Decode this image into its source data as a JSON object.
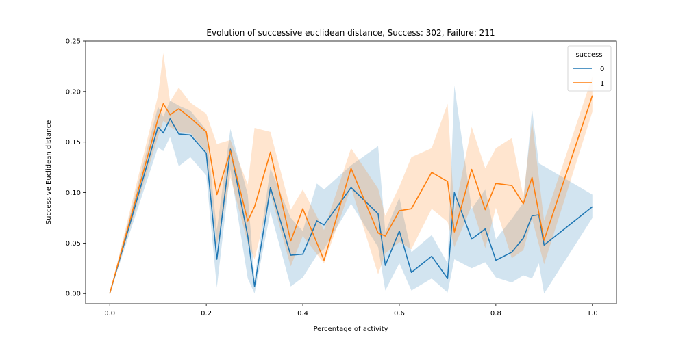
{
  "chart_data": {
    "type": "line",
    "title": "Evolution of successive euclidean distance, Success: 302, Failure: 211",
    "xlabel": "Percentage of activity",
    "ylabel": "Successive Euclidean distance",
    "xlim": [
      -0.05,
      1.05
    ],
    "ylim": [
      -0.01,
      0.25
    ],
    "xticks": [
      0.0,
      0.2,
      0.4,
      0.6,
      0.8,
      1.0
    ],
    "xtick_labels": [
      "0.0",
      "0.2",
      "0.4",
      "0.6",
      "0.8",
      "1.0"
    ],
    "yticks": [
      0.0,
      0.05,
      0.1,
      0.15,
      0.2,
      0.25
    ],
    "ytick_labels": [
      "0.00",
      "0.05",
      "0.10",
      "0.15",
      "0.20",
      "0.25"
    ],
    "grid": false,
    "legend": {
      "title": "success",
      "placement": "top-right"
    },
    "series": [
      {
        "name": "0",
        "color": "#1f77b4",
        "x": [
          0.0,
          0.1,
          0.111,
          0.125,
          0.143,
          0.167,
          0.2,
          0.222,
          0.25,
          0.286,
          0.3,
          0.333,
          0.375,
          0.4,
          0.429,
          0.444,
          0.5,
          0.556,
          0.571,
          0.6,
          0.625,
          0.667,
          0.7,
          0.714,
          0.75,
          0.778,
          0.8,
          0.833,
          0.857,
          0.875,
          0.889,
          0.9,
          1.0
        ],
        "y": [
          0.0,
          0.165,
          0.159,
          0.173,
          0.158,
          0.157,
          0.139,
          0.034,
          0.143,
          0.057,
          0.007,
          0.105,
          0.038,
          0.039,
          0.072,
          0.068,
          0.105,
          0.079,
          0.028,
          0.062,
          0.021,
          0.037,
          0.015,
          0.1,
          0.054,
          0.064,
          0.033,
          0.041,
          0.055,
          0.077,
          0.078,
          0.048,
          0.086
        ],
        "ci_low": [
          0.0,
          0.145,
          0.141,
          0.155,
          0.126,
          0.135,
          0.117,
          0.006,
          0.123,
          0.015,
          0.0,
          0.081,
          0.007,
          0.016,
          0.038,
          0.044,
          0.089,
          0.046,
          0.003,
          0.03,
          0.003,
          0.015,
          0.001,
          0.034,
          0.025,
          0.031,
          0.016,
          0.011,
          0.018,
          0.015,
          0.03,
          0.0,
          0.075
        ],
        "ci_high": [
          0.0,
          0.185,
          0.175,
          0.191,
          0.186,
          0.181,
          0.162,
          0.063,
          0.163,
          0.098,
          0.015,
          0.124,
          0.075,
          0.062,
          0.109,
          0.103,
          0.127,
          0.146,
          0.061,
          0.095,
          0.041,
          0.058,
          0.03,
          0.206,
          0.084,
          0.103,
          0.054,
          0.074,
          0.09,
          0.183,
          0.129,
          0.126,
          0.098
        ]
      },
      {
        "name": "1",
        "color": "#ff7f0e",
        "x": [
          0.0,
          0.1,
          0.111,
          0.125,
          0.143,
          0.167,
          0.2,
          0.222,
          0.25,
          0.286,
          0.3,
          0.333,
          0.375,
          0.4,
          0.444,
          0.5,
          0.556,
          0.571,
          0.6,
          0.625,
          0.667,
          0.7,
          0.714,
          0.75,
          0.778,
          0.8,
          0.833,
          0.857,
          0.875,
          0.9,
          1.0
        ],
        "y": [
          0.0,
          0.173,
          0.188,
          0.177,
          0.183,
          0.174,
          0.16,
          0.098,
          0.141,
          0.072,
          0.086,
          0.14,
          0.052,
          0.084,
          0.033,
          0.124,
          0.06,
          0.057,
          0.082,
          0.084,
          0.12,
          0.111,
          0.061,
          0.123,
          0.083,
          0.109,
          0.107,
          0.089,
          0.115,
          0.053,
          0.196
        ],
        "ci_low": [
          0.0,
          0.155,
          0.171,
          0.165,
          0.16,
          0.159,
          0.14,
          0.048,
          0.115,
          0.05,
          0.034,
          0.099,
          0.027,
          0.057,
          0.03,
          0.105,
          0.019,
          0.04,
          0.051,
          0.044,
          0.084,
          0.071,
          0.046,
          0.087,
          0.045,
          0.085,
          0.035,
          0.043,
          0.074,
          0.029,
          0.18
        ],
        "ci_high": [
          0.0,
          0.196,
          0.238,
          0.19,
          0.204,
          0.189,
          0.178,
          0.148,
          0.152,
          0.108,
          0.164,
          0.16,
          0.083,
          0.103,
          0.063,
          0.144,
          0.104,
          0.077,
          0.106,
          0.135,
          0.144,
          0.188,
          0.081,
          0.165,
          0.124,
          0.144,
          0.154,
          0.096,
          0.171,
          0.072,
          0.215
        ]
      }
    ]
  }
}
